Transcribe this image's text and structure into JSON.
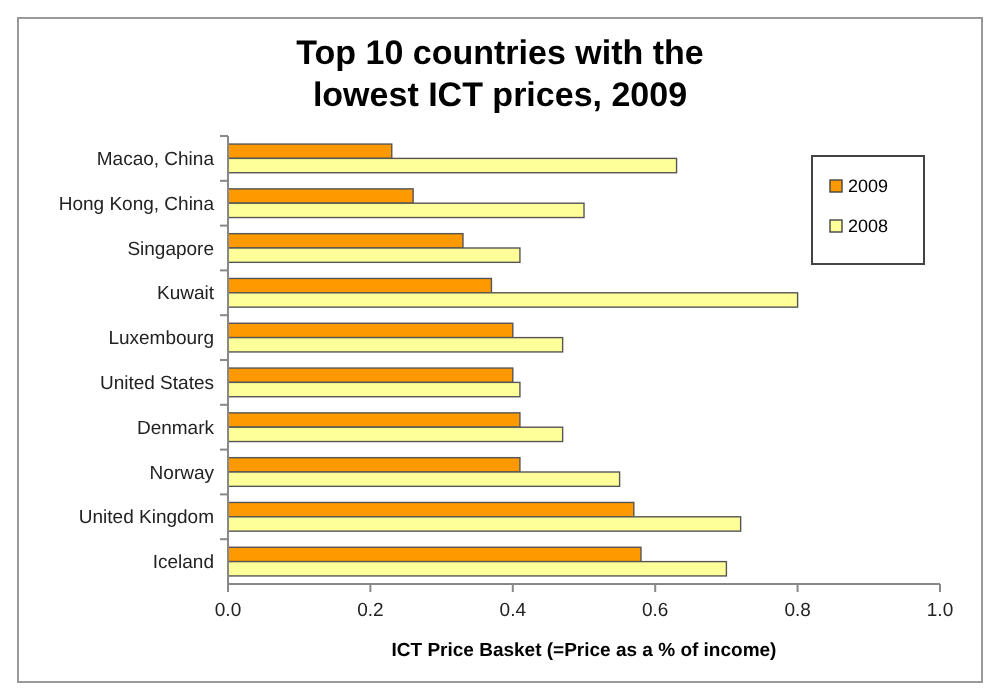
{
  "chart_data": {
    "type": "bar",
    "orientation": "horizontal",
    "title": "Top 10 countries with the lowest ICT prices, 2009",
    "xlabel": "ICT Price Basket (=Price as a % of income)",
    "categories": [
      "Macao, China",
      "Hong Kong, China",
      "Singapore",
      "Kuwait",
      "Luxembourg",
      "United States",
      "Denmark",
      "Norway",
      "United Kingdom",
      "Iceland"
    ],
    "series": [
      {
        "name": "2009",
        "color": "#ff9900",
        "values": [
          0.23,
          0.26,
          0.33,
          0.37,
          0.4,
          0.4,
          0.41,
          0.41,
          0.57,
          0.58
        ]
      },
      {
        "name": "2008",
        "color": "#ffff99",
        "values": [
          0.63,
          0.5,
          0.41,
          0.8,
          0.47,
          0.41,
          0.47,
          0.55,
          0.72,
          0.7
        ]
      }
    ],
    "xlim": [
      0,
      1
    ],
    "xticks": [
      {
        "value": 0,
        "label": "0.0"
      },
      0.2,
      0.4,
      0.6,
      0.8,
      {
        "value": 1,
        "label": "1.0"
      }
    ],
    "grid": false,
    "legend": "top right"
  }
}
